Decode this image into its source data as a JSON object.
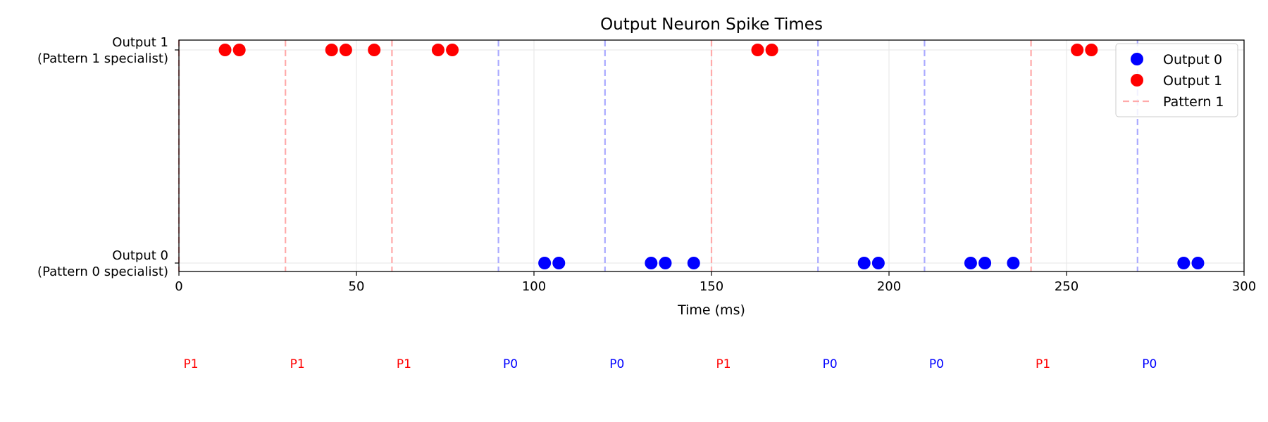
{
  "chart_data": {
    "type": "scatter",
    "title": "Output Neuron Spike Times",
    "xlabel": "Time (ms)",
    "xlim": [
      0,
      300
    ],
    "xticks": [
      0,
      50,
      100,
      150,
      200,
      250,
      300
    ],
    "yticks": [
      {
        "value": 0,
        "label": [
          "Output 0",
          "(Pattern 0 specialist)"
        ]
      },
      {
        "value": 1,
        "label": [
          "Output 1",
          "(Pattern 1 specialist)"
        ]
      }
    ],
    "grid": true,
    "legend_position": "upper-right",
    "series": [
      {
        "name": "Output 0",
        "y": 0,
        "color": "#0000ff",
        "x": [
          103,
          107,
          133,
          137,
          145,
          193,
          197,
          223,
          227,
          235,
          283,
          287
        ]
      },
      {
        "name": "Output 1",
        "y": 1,
        "color": "#ff0000",
        "x": [
          13,
          17,
          43,
          47,
          55,
          73,
          77,
          163,
          167,
          253,
          257
        ]
      }
    ],
    "pattern_onsets": [
      {
        "time": 0,
        "pattern": 1,
        "label": "P1"
      },
      {
        "time": 30,
        "pattern": 1,
        "label": "P1"
      },
      {
        "time": 60,
        "pattern": 1,
        "label": "P1"
      },
      {
        "time": 90,
        "pattern": 0,
        "label": "P0"
      },
      {
        "time": 120,
        "pattern": 0,
        "label": "P0"
      },
      {
        "time": 150,
        "pattern": 1,
        "label": "P1"
      },
      {
        "time": 180,
        "pattern": 0,
        "label": "P0"
      },
      {
        "time": 210,
        "pattern": 0,
        "label": "P0"
      },
      {
        "time": 240,
        "pattern": 1,
        "label": "P1"
      },
      {
        "time": 270,
        "pattern": 0,
        "label": "P0"
      }
    ],
    "onset_legend_label": "Pattern 1",
    "colors": {
      "pattern0": "#0000ff",
      "pattern1": "#ff0000",
      "line_p0": "#aaaaff",
      "line_p1": "#ffaaaa",
      "grid": "#e5e5e5"
    }
  }
}
